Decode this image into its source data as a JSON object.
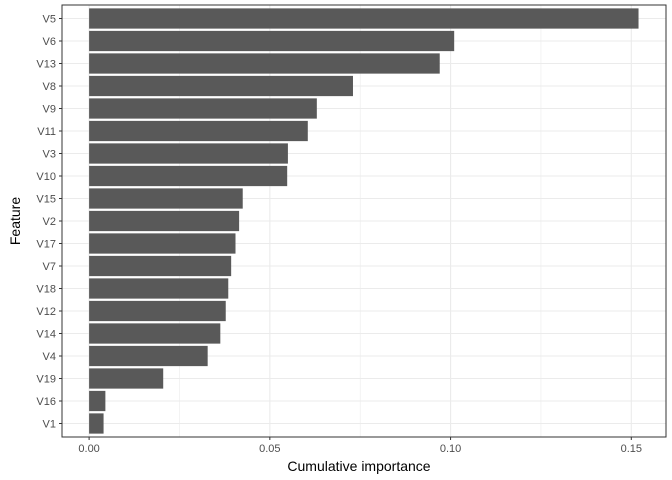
{
  "chart_data": {
    "type": "bar",
    "orientation": "horizontal",
    "categories": [
      "V5",
      "V6",
      "V13",
      "V8",
      "V9",
      "V11",
      "V3",
      "V10",
      "V15",
      "V2",
      "V17",
      "V7",
      "V18",
      "V12",
      "V14",
      "V4",
      "V19",
      "V16",
      "V1"
    ],
    "values": [
      0.152,
      0.101,
      0.097,
      0.073,
      0.063,
      0.0605,
      0.055,
      0.0548,
      0.0425,
      0.0415,
      0.0405,
      0.0393,
      0.0385,
      0.0378,
      0.0363,
      0.0328,
      0.0205,
      0.0045,
      0.004
    ],
    "xlabel": "Cumulative importance",
    "ylabel": "Feature",
    "xlim": [
      -0.0075,
      0.1596
    ],
    "x_ticks": [
      0.0,
      0.05,
      0.1,
      0.15
    ],
    "x_tick_labels": [
      "0.00",
      "0.05",
      "0.10",
      "0.15"
    ],
    "grid": true,
    "theme": "bw",
    "bar_color": "#595959",
    "panel_border_color": "#333333",
    "grid_color": "#ebebeb"
  }
}
